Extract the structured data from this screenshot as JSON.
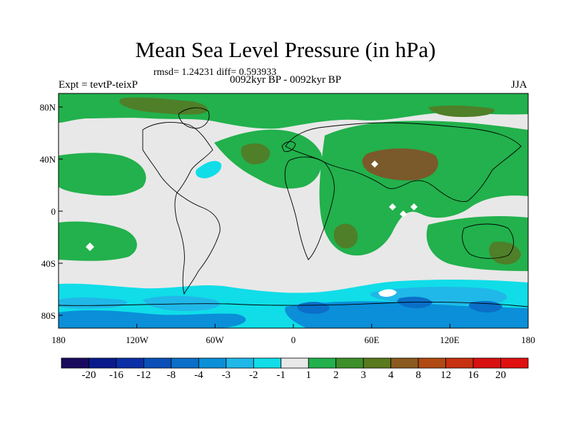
{
  "title": "Mean Sea Level Pressure (in hPa)",
  "stats": "rmsd= 1.24231 diff= 0.593933",
  "experiment": "Expt = tevtP-teixP",
  "period": "0092kyr BP - 0092kyr BP",
  "season": "JJA",
  "y_axis": {
    "ticks": [
      "80N",
      "40N",
      "0",
      "40S",
      "80S"
    ]
  },
  "x_axis": {
    "ticks": [
      "180",
      "120W",
      "60W",
      "0",
      "60E",
      "120E",
      "180"
    ]
  },
  "colorbar": {
    "labels": [
      "-20",
      "-16",
      "-12",
      "-8",
      "-4",
      "-3",
      "-2",
      "-1",
      "1",
      "2",
      "3",
      "4",
      "8",
      "12",
      "16",
      "20"
    ],
    "colors": [
      "#1a0a5e",
      "#0a1a8c",
      "#0a2fa6",
      "#0a4fb8",
      "#0a6fc8",
      "#0a8fd8",
      "#20b8e8",
      "#10dde8",
      "#e8e8e8",
      "#22b14c",
      "#3d8f2a",
      "#5a7a1e",
      "#8b5a1e",
      "#b04a12",
      "#c83010",
      "#d81010",
      "#e01010"
    ]
  },
  "map_colors": {
    "neutral": "#e8e8e8",
    "green": "#22b14c",
    "olive": "#4f7f28",
    "brown": "#7a5a2a",
    "cyan": "#10dde8",
    "lightblue": "#20b8e8",
    "blue": "#0a8fd8",
    "darkblue": "#0a6fc8",
    "white": "#ffffff"
  }
}
